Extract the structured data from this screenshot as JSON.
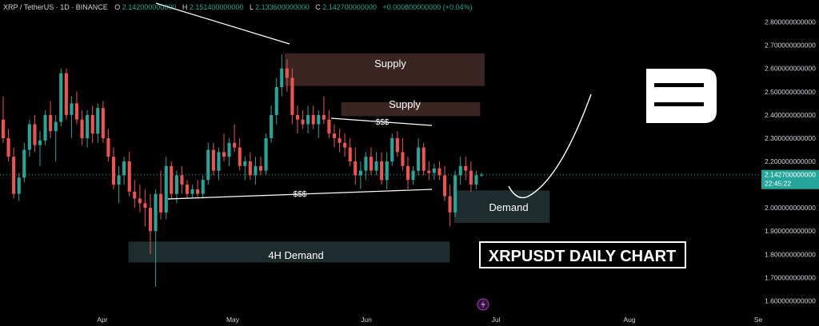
{
  "header": {
    "symbol": "XRP / TetherUS · 1D · BINANCE",
    "o_label": "O",
    "o_value": "2.142000000000",
    "h_label": "H",
    "h_value": "2.151400000000",
    "l_label": "L",
    "l_value": "2.133600000000",
    "c_label": "C",
    "c_value": "2.142700000000",
    "change": "+0.000800000000 (+0.04%)"
  },
  "colors": {
    "background": "#000000",
    "up": "#26a69a",
    "down": "#ef5350",
    "supply_zone": "#3a2523",
    "demand_zone": "#1e2c2e",
    "price_label": "#26a69a",
    "text": "#d1d4dc"
  },
  "annotations": {
    "supply_top": "Supply",
    "supply_mid": "Supply",
    "demand_right": "Demand",
    "demand_4h": "4H Demand",
    "liquidity_top": "$$$",
    "liquidity_bottom": "$$$",
    "chart_title": "XRPUSDT DAILY CHART",
    "logo_letter": "B"
  },
  "price_label": {
    "value": "2.142700000000",
    "countdown": "22:45:22"
  },
  "chart_data": {
    "type": "candlestick",
    "y_axis": {
      "ylim": [
        1.56,
        2.84
      ],
      "ticks": [
        "2.800000000000",
        "2.700000000000",
        "2.600000000000",
        "2.500000000000",
        "2.400000000000",
        "2.300000000000",
        "2.200000000000",
        "2.100000000000",
        "2.000000000000",
        "1.900000000000",
        "1.800000000000",
        "1.700000000000",
        "1.600000000000"
      ]
    },
    "x_axis": {
      "labels": [
        "Apr",
        "May",
        "Jun",
        "Jul",
        "Aug",
        "Se"
      ]
    },
    "zones": [
      {
        "label": "Supply",
        "kind": "supply",
        "x_start": "2025-05-13",
        "x_end": "2025-06-28",
        "y_low": 2.525,
        "y_high": 2.665
      },
      {
        "label": "Supply",
        "kind": "supply",
        "x_start": "2025-05-26",
        "x_end": "2025-06-27",
        "y_low": 2.395,
        "y_high": 2.455
      },
      {
        "label": "Demand",
        "kind": "demand",
        "x_start": "2025-06-21",
        "x_end": "2025-07-13",
        "y_low": 1.935,
        "y_high": 2.075
      },
      {
        "label": "4H Demand",
        "kind": "demand",
        "x_start": "2025-04-07",
        "x_end": "2025-06-20",
        "y_low": 1.765,
        "y_high": 1.855
      }
    ],
    "candles": [
      {
        "o": 2.38,
        "h": 2.48,
        "l": 2.28,
        "c": 2.3
      },
      {
        "o": 2.3,
        "h": 2.34,
        "l": 2.2,
        "c": 2.22
      },
      {
        "o": 2.22,
        "h": 2.26,
        "l": 2.04,
        "c": 2.06
      },
      {
        "o": 2.06,
        "h": 2.15,
        "l": 2.03,
        "c": 2.13
      },
      {
        "o": 2.13,
        "h": 2.28,
        "l": 2.11,
        "c": 2.25
      },
      {
        "o": 2.25,
        "h": 2.38,
        "l": 2.22,
        "c": 2.36
      },
      {
        "o": 2.36,
        "h": 2.4,
        "l": 2.24,
        "c": 2.27
      },
      {
        "o": 2.27,
        "h": 2.33,
        "l": 2.18,
        "c": 2.29
      },
      {
        "o": 2.29,
        "h": 2.42,
        "l": 2.27,
        "c": 2.4
      },
      {
        "o": 2.4,
        "h": 2.46,
        "l": 2.3,
        "c": 2.33
      },
      {
        "o": 2.33,
        "h": 2.4,
        "l": 2.2,
        "c": 2.37
      },
      {
        "o": 2.37,
        "h": 2.6,
        "l": 2.35,
        "c": 2.58
      },
      {
        "o": 2.58,
        "h": 2.6,
        "l": 2.38,
        "c": 2.4
      },
      {
        "o": 2.4,
        "h": 2.48,
        "l": 2.3,
        "c": 2.45
      },
      {
        "o": 2.45,
        "h": 2.5,
        "l": 2.36,
        "c": 2.38
      },
      {
        "o": 2.38,
        "h": 2.42,
        "l": 2.27,
        "c": 2.3
      },
      {
        "o": 2.3,
        "h": 2.42,
        "l": 2.26,
        "c": 2.4
      },
      {
        "o": 2.4,
        "h": 2.44,
        "l": 2.28,
        "c": 2.32
      },
      {
        "o": 2.32,
        "h": 2.45,
        "l": 2.28,
        "c": 2.43
      },
      {
        "o": 2.43,
        "h": 2.46,
        "l": 2.28,
        "c": 2.3
      },
      {
        "o": 2.3,
        "h": 2.34,
        "l": 2.2,
        "c": 2.22
      },
      {
        "o": 2.22,
        "h": 2.26,
        "l": 2.08,
        "c": 2.1
      },
      {
        "o": 2.1,
        "h": 2.18,
        "l": 2.02,
        "c": 2.14
      },
      {
        "o": 2.14,
        "h": 2.22,
        "l": 2.1,
        "c": 2.2
      },
      {
        "o": 2.2,
        "h": 2.24,
        "l": 2.05,
        "c": 2.07
      },
      {
        "o": 2.07,
        "h": 2.12,
        "l": 2.0,
        "c": 2.04
      },
      {
        "o": 2.04,
        "h": 2.1,
        "l": 1.98,
        "c": 2.02
      },
      {
        "o": 2.02,
        "h": 2.08,
        "l": 1.92,
        "c": 2.0
      },
      {
        "o": 2.0,
        "h": 2.06,
        "l": 1.8,
        "c": 1.9
      },
      {
        "o": 1.9,
        "h": 2.08,
        "l": 1.66,
        "c": 2.06
      },
      {
        "o": 2.06,
        "h": 2.16,
        "l": 1.95,
        "c": 1.98
      },
      {
        "o": 1.98,
        "h": 2.22,
        "l": 1.95,
        "c": 2.18
      },
      {
        "o": 2.18,
        "h": 2.2,
        "l": 2.04,
        "c": 2.06
      },
      {
        "o": 2.06,
        "h": 2.16,
        "l": 2.02,
        "c": 2.14
      },
      {
        "o": 2.14,
        "h": 2.18,
        "l": 2.06,
        "c": 2.1
      },
      {
        "o": 2.1,
        "h": 2.12,
        "l": 2.04,
        "c": 2.06
      },
      {
        "o": 2.06,
        "h": 2.1,
        "l": 2.04,
        "c": 2.08
      },
      {
        "o": 2.08,
        "h": 2.12,
        "l": 2.04,
        "c": 2.06
      },
      {
        "o": 2.06,
        "h": 2.14,
        "l": 2.04,
        "c": 2.12
      },
      {
        "o": 2.12,
        "h": 2.28,
        "l": 2.1,
        "c": 2.25
      },
      {
        "o": 2.25,
        "h": 2.28,
        "l": 2.14,
        "c": 2.16
      },
      {
        "o": 2.16,
        "h": 2.26,
        "l": 2.12,
        "c": 2.24
      },
      {
        "o": 2.24,
        "h": 2.32,
        "l": 2.2,
        "c": 2.22
      },
      {
        "o": 2.22,
        "h": 2.3,
        "l": 2.18,
        "c": 2.28
      },
      {
        "o": 2.28,
        "h": 2.36,
        "l": 2.24,
        "c": 2.26
      },
      {
        "o": 2.26,
        "h": 2.3,
        "l": 2.16,
        "c": 2.18
      },
      {
        "o": 2.18,
        "h": 2.22,
        "l": 2.12,
        "c": 2.2
      },
      {
        "o": 2.2,
        "h": 2.24,
        "l": 2.12,
        "c": 2.14
      },
      {
        "o": 2.14,
        "h": 2.22,
        "l": 2.1,
        "c": 2.18
      },
      {
        "o": 2.18,
        "h": 2.22,
        "l": 2.14,
        "c": 2.16
      },
      {
        "o": 2.16,
        "h": 2.32,
        "l": 2.14,
        "c": 2.3
      },
      {
        "o": 2.3,
        "h": 2.44,
        "l": 2.28,
        "c": 2.4
      },
      {
        "o": 2.4,
        "h": 2.56,
        "l": 2.36,
        "c": 2.52
      },
      {
        "o": 2.52,
        "h": 2.66,
        "l": 2.48,
        "c": 2.6
      },
      {
        "o": 2.6,
        "h": 2.64,
        "l": 2.5,
        "c": 2.56
      },
      {
        "o": 2.56,
        "h": 2.6,
        "l": 2.36,
        "c": 2.4
      },
      {
        "o": 2.4,
        "h": 2.44,
        "l": 2.32,
        "c": 2.38
      },
      {
        "o": 2.38,
        "h": 2.42,
        "l": 2.34,
        "c": 2.36
      },
      {
        "o": 2.36,
        "h": 2.44,
        "l": 2.32,
        "c": 2.4
      },
      {
        "o": 2.4,
        "h": 2.44,
        "l": 2.34,
        "c": 2.36
      },
      {
        "o": 2.36,
        "h": 2.42,
        "l": 2.3,
        "c": 2.4
      },
      {
        "o": 2.4,
        "h": 2.48,
        "l": 2.36,
        "c": 2.38
      },
      {
        "o": 2.38,
        "h": 2.42,
        "l": 2.3,
        "c": 2.32
      },
      {
        "o": 2.32,
        "h": 2.36,
        "l": 2.26,
        "c": 2.3
      },
      {
        "o": 2.3,
        "h": 2.34,
        "l": 2.24,
        "c": 2.28
      },
      {
        "o": 2.28,
        "h": 2.32,
        "l": 2.22,
        "c": 2.26
      },
      {
        "o": 2.26,
        "h": 2.3,
        "l": 2.18,
        "c": 2.2
      },
      {
        "o": 2.2,
        "h": 2.26,
        "l": 2.1,
        "c": 2.14
      },
      {
        "o": 2.14,
        "h": 2.2,
        "l": 2.08,
        "c": 2.16
      },
      {
        "o": 2.16,
        "h": 2.24,
        "l": 2.12,
        "c": 2.22
      },
      {
        "o": 2.22,
        "h": 2.26,
        "l": 2.14,
        "c": 2.16
      },
      {
        "o": 2.16,
        "h": 2.24,
        "l": 2.14,
        "c": 2.2
      },
      {
        "o": 2.2,
        "h": 2.24,
        "l": 2.1,
        "c": 2.12
      },
      {
        "o": 2.12,
        "h": 2.24,
        "l": 2.08,
        "c": 2.2
      },
      {
        "o": 2.2,
        "h": 2.32,
        "l": 2.18,
        "c": 2.3
      },
      {
        "o": 2.3,
        "h": 2.33,
        "l": 2.22,
        "c": 2.24
      },
      {
        "o": 2.24,
        "h": 2.3,
        "l": 2.16,
        "c": 2.18
      },
      {
        "o": 2.18,
        "h": 2.22,
        "l": 2.08,
        "c": 2.12
      },
      {
        "o": 2.12,
        "h": 2.18,
        "l": 2.1,
        "c": 2.16
      },
      {
        "o": 2.16,
        "h": 2.3,
        "l": 2.14,
        "c": 2.26
      },
      {
        "o": 2.26,
        "h": 2.28,
        "l": 2.14,
        "c": 2.16
      },
      {
        "o": 2.16,
        "h": 2.2,
        "l": 2.12,
        "c": 2.15
      },
      {
        "o": 2.15,
        "h": 2.19,
        "l": 2.12,
        "c": 2.17
      },
      {
        "o": 2.17,
        "h": 2.2,
        "l": 2.12,
        "c": 2.14
      },
      {
        "o": 2.14,
        "h": 2.18,
        "l": 2.03,
        "c": 2.05
      },
      {
        "o": 2.05,
        "h": 2.1,
        "l": 1.92,
        "c": 1.98
      },
      {
        "o": 1.98,
        "h": 2.16,
        "l": 1.96,
        "c": 2.14
      },
      {
        "o": 2.14,
        "h": 2.22,
        "l": 2.1,
        "c": 2.18
      },
      {
        "o": 2.18,
        "h": 2.22,
        "l": 2.12,
        "c": 2.16
      },
      {
        "o": 2.16,
        "h": 2.2,
        "l": 2.07,
        "c": 2.1
      },
      {
        "o": 2.1,
        "h": 2.16,
        "l": 2.08,
        "c": 2.14
      },
      {
        "o": 2.142,
        "h": 2.1514,
        "l": 2.1336,
        "c": 2.1427
      }
    ]
  }
}
